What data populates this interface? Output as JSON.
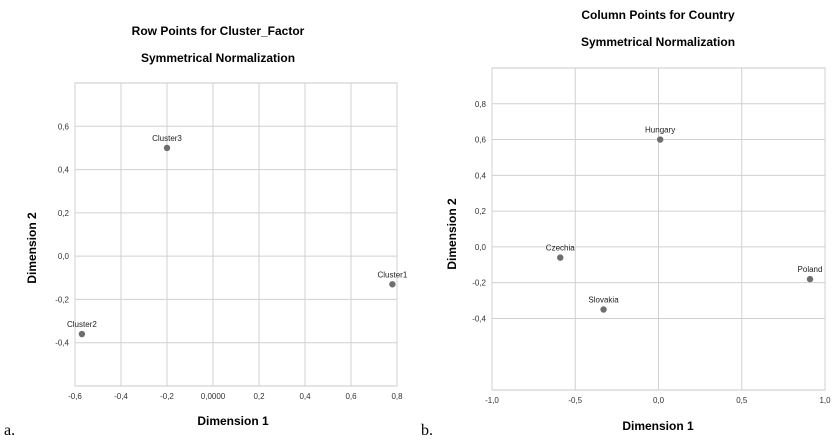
{
  "panel_labels": [
    "a.",
    "b."
  ],
  "chart_data": [
    {
      "type": "scatter",
      "title": "Row Points for Cluster_Factor",
      "subtitle": "Symmetrical Normalization",
      "xlabel": "Dimension 1",
      "ylabel": "Dimension 2",
      "xlim": [
        -0.6,
        0.8
      ],
      "ylim": [
        -0.6,
        0.8
      ],
      "xticks": [
        -0.6,
        -0.4,
        -0.2,
        0.0,
        0.2,
        0.4,
        0.6,
        0.8
      ],
      "xtick_labels": [
        "-0,6",
        "-0,4",
        "-0,2",
        "0,0000",
        "0,2",
        "0,4",
        "0,6",
        "0,8"
      ],
      "yticks": [
        -0.4,
        -0.2,
        0.0,
        0.2,
        0.4,
        0.6
      ],
      "ytick_labels": [
        "-0,4",
        "-0,2",
        "0,0",
        "0,2",
        "0,4",
        "0,6"
      ],
      "grid": true,
      "points": [
        {
          "label": "Cluster3",
          "x": -0.2,
          "y": 0.5
        },
        {
          "label": "Cluster1",
          "x": 0.78,
          "y": -0.13
        },
        {
          "label": "Cluster2",
          "x": -0.57,
          "y": -0.36
        }
      ]
    },
    {
      "type": "scatter",
      "title": "Column Points for Country",
      "subtitle": "Symmetrical Normalization",
      "xlabel": "Dimension 1",
      "ylabel": "Dimension 2",
      "xlim": [
        -1.0,
        1.0
      ],
      "ylim": [
        -0.8,
        1.0
      ],
      "xticks": [
        -1.0,
        -0.5,
        0.0,
        0.5,
        1.0
      ],
      "xtick_labels": [
        "-1,0",
        "-0,5",
        "0,0",
        "0,5",
        "1,0"
      ],
      "yticks": [
        -0.4,
        -0.2,
        0.0,
        0.2,
        0.4,
        0.6,
        0.8
      ],
      "ytick_labels": [
        "-0,4",
        "-0,2",
        "0,0",
        "0,2",
        "0,4",
        "0,6",
        "0,8"
      ],
      "grid": true,
      "points": [
        {
          "label": "Hungary",
          "x": 0.01,
          "y": 0.6
        },
        {
          "label": "Czechia",
          "x": -0.59,
          "y": -0.06
        },
        {
          "label": "Poland",
          "x": 0.91,
          "y": -0.18
        },
        {
          "label": "Slovakia",
          "x": -0.33,
          "y": -0.35
        }
      ]
    }
  ]
}
